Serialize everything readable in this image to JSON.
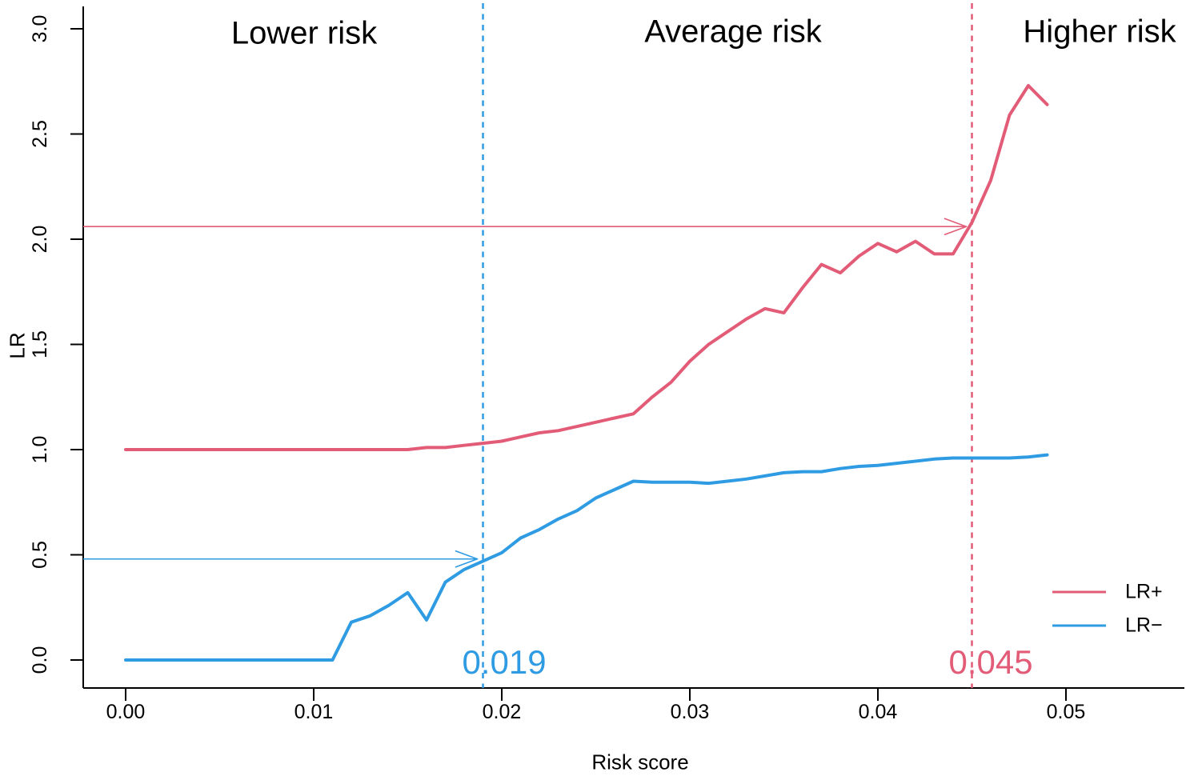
{
  "chart_data": {
    "type": "line",
    "title": "",
    "xlabel": "Risk score",
    "ylabel": "LR",
    "xlim": [
      0,
      0.05
    ],
    "ylim": [
      0,
      3
    ],
    "grid": false,
    "x": [
      0.0,
      0.001,
      0.002,
      0.003,
      0.004,
      0.005,
      0.006,
      0.007,
      0.008,
      0.009,
      0.01,
      0.011,
      0.012,
      0.013,
      0.014,
      0.015,
      0.016,
      0.017,
      0.018,
      0.019,
      0.02,
      0.021,
      0.022,
      0.023,
      0.024,
      0.025,
      0.026,
      0.027,
      0.028,
      0.029,
      0.03,
      0.031,
      0.032,
      0.033,
      0.034,
      0.035,
      0.036,
      0.037,
      0.038,
      0.039,
      0.04,
      0.041,
      0.042,
      0.043,
      0.044,
      0.045,
      0.046,
      0.047,
      0.048,
      0.049
    ],
    "series": [
      {
        "name": "LR+",
        "color_key": "lr_plus",
        "values": [
          1.0,
          1.0,
          1.0,
          1.0,
          1.0,
          1.0,
          1.0,
          1.0,
          1.0,
          1.0,
          1.0,
          1.0,
          1.0,
          1.0,
          1.0,
          1.0,
          1.01,
          1.01,
          1.02,
          1.03,
          1.04,
          1.06,
          1.08,
          1.09,
          1.11,
          1.13,
          1.15,
          1.17,
          1.25,
          1.32,
          1.42,
          1.5,
          1.56,
          1.62,
          1.67,
          1.65,
          1.77,
          1.88,
          1.84,
          1.92,
          1.98,
          1.94,
          1.99,
          1.93,
          1.93,
          2.08,
          2.28,
          2.59,
          2.73,
          2.64
        ]
      },
      {
        "name": "LR−",
        "color_key": "lr_minus",
        "values": [
          0.0,
          0.0,
          0.0,
          0.0,
          0.0,
          0.0,
          0.0,
          0.0,
          0.0,
          0.0,
          0.0,
          0.0,
          0.18,
          0.21,
          0.26,
          0.32,
          0.19,
          0.37,
          0.43,
          0.47,
          0.51,
          0.58,
          0.62,
          0.67,
          0.71,
          0.77,
          0.81,
          0.85,
          0.845,
          0.845,
          0.845,
          0.84,
          0.85,
          0.86,
          0.875,
          0.89,
          0.895,
          0.895,
          0.91,
          0.92,
          0.925,
          0.935,
          0.945,
          0.955,
          0.96,
          0.96,
          0.96,
          0.96,
          0.965,
          0.975
        ]
      }
    ],
    "x_ticks": [
      {
        "v": 0.0,
        "label": "0.00"
      },
      {
        "v": 0.01,
        "label": "0.01"
      },
      {
        "v": 0.02,
        "label": "0.02"
      },
      {
        "v": 0.03,
        "label": "0.03"
      },
      {
        "v": 0.04,
        "label": "0.04"
      },
      {
        "v": 0.05,
        "label": "0.05"
      }
    ],
    "y_ticks": [
      {
        "v": 0.0,
        "label": "0.0"
      },
      {
        "v": 0.5,
        "label": "0.5"
      },
      {
        "v": 1.0,
        "label": "1.0"
      },
      {
        "v": 1.5,
        "label": "1.5"
      },
      {
        "v": 2.0,
        "label": "2.0"
      },
      {
        "v": 2.5,
        "label": "2.5"
      },
      {
        "v": 3.0,
        "label": "3.0"
      }
    ],
    "thresholds": [
      {
        "label": "0.019",
        "x": 0.019,
        "arrow_lr": 0.48,
        "color_key": "lr_minus",
        "line_style": "dashed"
      },
      {
        "label": "0.045",
        "x": 0.045,
        "arrow_lr": 2.06,
        "color_key": "lr_plus",
        "line_style": "dashed"
      }
    ],
    "regions": [
      {
        "label": "Lower risk"
      },
      {
        "label": "Average risk"
      },
      {
        "label": "Higher risk"
      }
    ],
    "legend": {
      "position": "bottom-right",
      "entries": [
        "LR+",
        "LR−"
      ]
    }
  },
  "colors": {
    "lr_plus": "#E25C77",
    "lr_minus": "#2E9BE3",
    "axis": "#000000",
    "background": "#FFFFFF"
  }
}
